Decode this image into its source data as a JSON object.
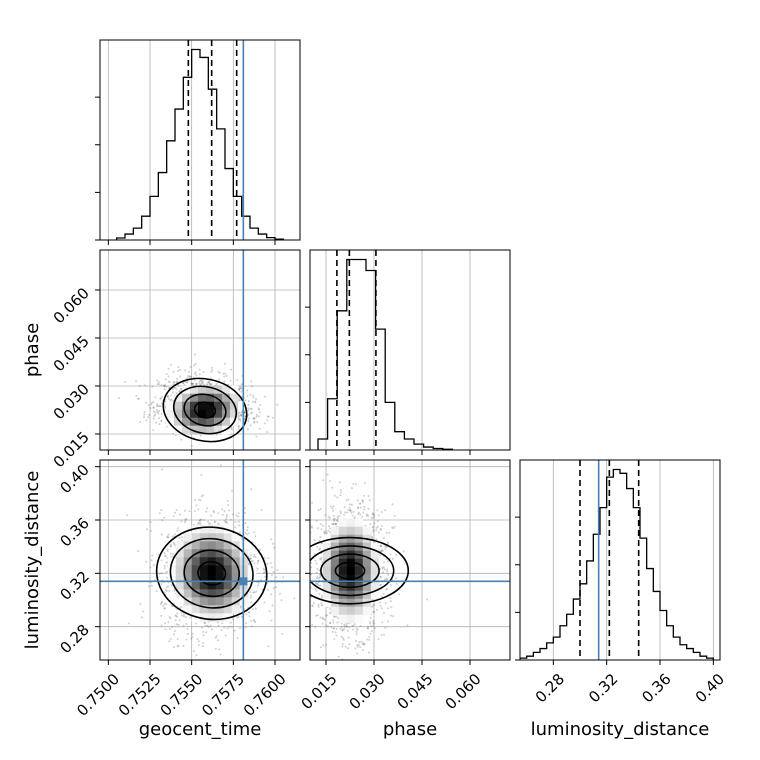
{
  "chart_data": {
    "type": "corner",
    "parameters": [
      "geocent_time",
      "phase",
      "luminosity_distance"
    ],
    "labels": {
      "geocent_time": "geocent_time",
      "phase": "phase",
      "luminosity_distance": "luminosity_distance"
    },
    "truth": {
      "geocent_time": 0.7581,
      "phase": "",
      "luminosity_distance": 0.314
    },
    "truth_color": "#4682b4",
    "axes": {
      "geocent_time": {
        "range": [
          0.7495,
          0.7615
        ],
        "ticks": [
          "0.7500",
          "0.7525",
          "0.7550",
          "0.7575",
          "0.7600"
        ],
        "tick_values": [
          0.75,
          0.7525,
          0.755,
          0.7575,
          0.76
        ]
      },
      "phase": {
        "range": [
          0.01,
          0.0725
        ],
        "ticks": [
          "0.015",
          "0.030",
          "0.045",
          "0.060"
        ],
        "tick_values": [
          0.015,
          0.03,
          0.045,
          0.06
        ]
      },
      "luminosity_distance": {
        "range": [
          0.255,
          0.405
        ],
        "ticks": [
          "0.28",
          "0.32",
          "0.36",
          "0.40"
        ],
        "tick_values": [
          0.28,
          0.32,
          0.36,
          0.4
        ]
      }
    },
    "histograms": {
      "geocent_time": {
        "bin_edges": [
          0.7505,
          0.751,
          0.7515,
          0.752,
          0.7525,
          0.753,
          0.7535,
          0.754,
          0.7545,
          0.755,
          0.7555,
          0.756,
          0.7565,
          0.757,
          0.7575,
          0.758,
          0.7585,
          0.759,
          0.7595,
          0.76,
          0.7605
        ],
        "counts": [
          0.5,
          1.5,
          3,
          6,
          11,
          17,
          25,
          33,
          41,
          48,
          46,
          38,
          28,
          18,
          11,
          6,
          3,
          1.5,
          0.6,
          0.2
        ],
        "quantiles": [
          0.7548,
          0.7562,
          0.7577
        ]
      },
      "phase": {
        "bin_edges": [
          0.0125,
          0.0155,
          0.0185,
          0.0215,
          0.0245,
          0.0275,
          0.0305,
          0.0335,
          0.0365,
          0.0395,
          0.0425,
          0.0455,
          0.0485,
          0.0515,
          0.0545
        ],
        "counts": [
          3,
          14,
          38,
          52,
          52,
          49,
          33,
          13,
          5,
          3,
          1.6,
          0.8,
          0.4,
          0.2
        ],
        "quantiles": [
          0.0184,
          0.0223,
          0.0306
        ]
      },
      "luminosity_distance": {
        "bin_edges": [
          0.255,
          0.26,
          0.265,
          0.27,
          0.275,
          0.28,
          0.285,
          0.29,
          0.295,
          0.3,
          0.305,
          0.31,
          0.315,
          0.32,
          0.325,
          0.33,
          0.335,
          0.34,
          0.345,
          0.35,
          0.355,
          0.36,
          0.365,
          0.37,
          0.375,
          0.38,
          0.385,
          0.39,
          0.395,
          0.4
        ],
        "counts": [
          0.5,
          1,
          2,
          3,
          4.5,
          6,
          9,
          12,
          16,
          20,
          26,
          33,
          40,
          48,
          50,
          49,
          45,
          40,
          32,
          24,
          18,
          13,
          9,
          6,
          4,
          3,
          2,
          1,
          0.5
        ],
        "quantiles": [
          0.3,
          0.322,
          0.344
        ]
      }
    },
    "pairs": [
      {
        "x": "geocent_time",
        "y": "phase",
        "center": [
          0.7558,
          0.0225
        ],
        "spread": [
          0.0011,
          0.0042
        ],
        "corr": -0.15
      },
      {
        "x": "geocent_time",
        "y": "luminosity_distance",
        "center": [
          0.7562,
          0.32
        ],
        "spread": [
          0.0012,
          0.018
        ],
        "corr": 0.05
      },
      {
        "x": "phase",
        "y": "luminosity_distance",
        "center": [
          0.0225,
          0.322
        ],
        "spread": [
          0.0045,
          0.019
        ],
        "corr": 0.0
      }
    ]
  }
}
